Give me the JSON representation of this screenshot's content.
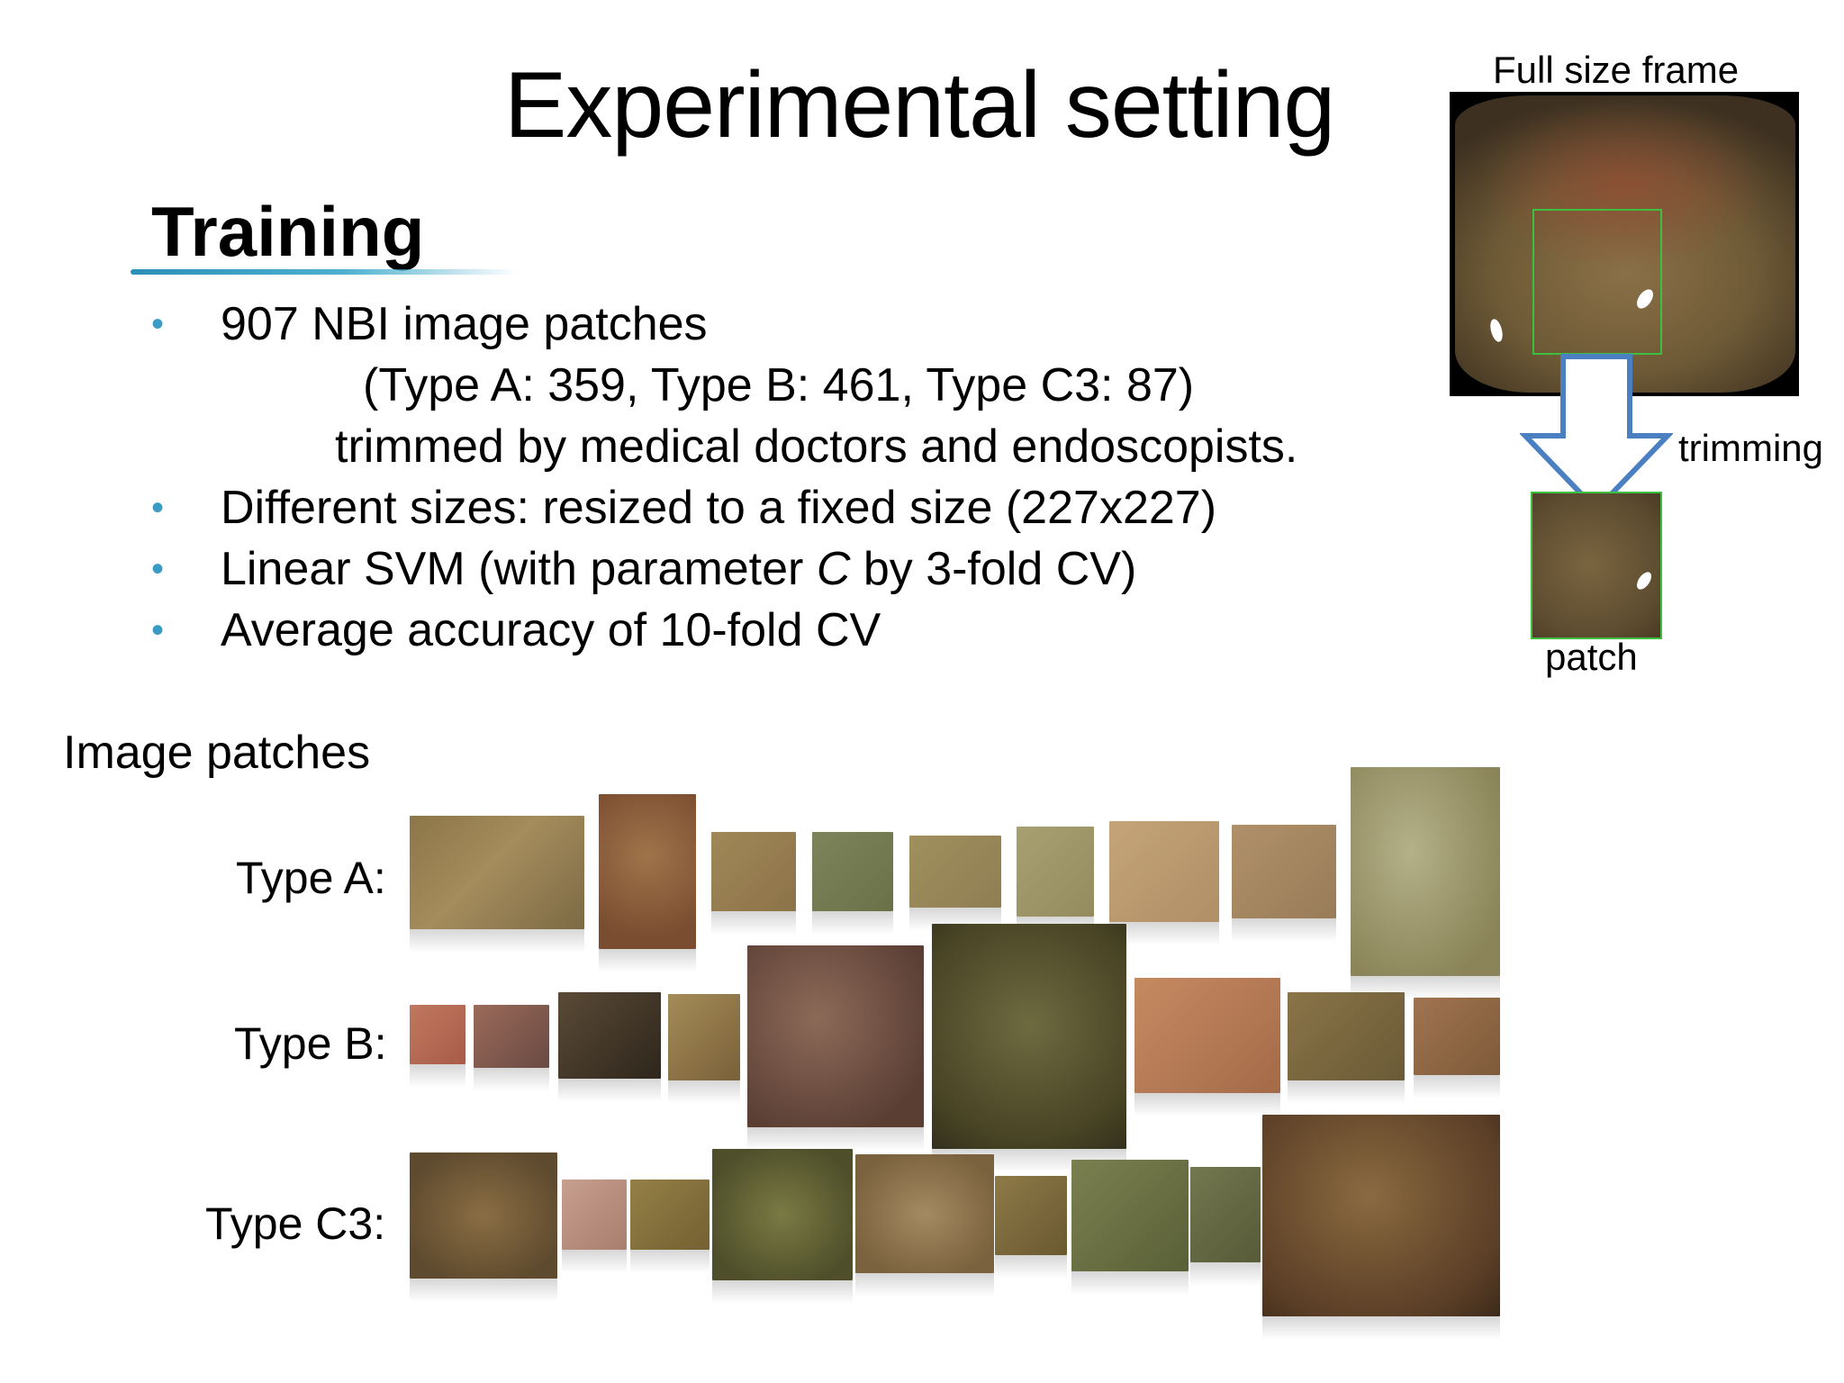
{
  "slide": {
    "title": "Experimental setting",
    "section_heading": "Training",
    "bullets": [
      {
        "line1": "907 NBI image patches",
        "line2": "(Type A: 359, Type B: 461, Type C3: 87)",
        "line3": "trimmed by medical doctors and endoscopists."
      },
      {
        "text": "Different sizes: resized to a fixed size (227x227)"
      },
      {
        "before": "Linear SVM (with parameter ",
        "italic": "C",
        "after": " by 3-fold CV)"
      },
      {
        "text": "Average accuracy of 10-fold CV"
      }
    ],
    "bullet_symbol": "•",
    "image_patches_label": "Image patches",
    "row_labels": {
      "a": "Type A:",
      "b": "Type B:",
      "c3": "Type C3:"
    },
    "frame_caption": "Full size frame",
    "trimming_label": "trimming",
    "patch_label": "patch"
  },
  "colors": {
    "accent_underline": "#2b8fb8",
    "bullet": "#3a9cc4",
    "arrow_stroke": "#4a7fc1",
    "patch_border": "#3fbf3f"
  }
}
